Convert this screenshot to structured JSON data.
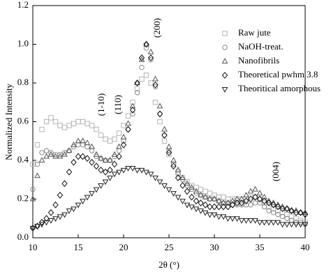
{
  "chart_data": {
    "type": "scatter",
    "xlabel": "2θ (°)",
    "ylabel": "Normalized Intensity",
    "annotations": [
      "(1-10)",
      "(110)",
      "(200)",
      "(004)"
    ],
    "legend": "upper right",
    "xlim": [
      10,
      40
    ],
    "ylim": [
      0,
      1.2
    ],
    "xticks": [
      10,
      15,
      20,
      25,
      30,
      35,
      40
    ],
    "yticks": [
      {
        "value": 0,
        "label": "0.0"
      },
      0.2,
      0.4,
      0.6,
      0.8,
      {
        "value": 1,
        "label": "1.0"
      },
      1.2
    ],
    "x": [
      10,
      10.5,
      11,
      11.5,
      12,
      12.5,
      13,
      13.5,
      14,
      14.5,
      15,
      15.5,
      16,
      16.5,
      17,
      17.5,
      18,
      18.5,
      19,
      19.5,
      20,
      20.5,
      21,
      21.5,
      22,
      22.5,
      23,
      23.5,
      24,
      24.5,
      25,
      25.5,
      26,
      26.5,
      27,
      27.5,
      28,
      28.5,
      29,
      29.5,
      30,
      30.5,
      31,
      31.5,
      32,
      32.5,
      33,
      33.5,
      34,
      34.5,
      35,
      35.5,
      36,
      36.5,
      37,
      37.5,
      38,
      38.5,
      39,
      39.5,
      40
    ],
    "series": [
      {
        "name": "Raw jute",
        "color": "#b3b3b3",
        "marker": "square",
        "values": [
          0.38,
          0.48,
          0.56,
          0.6,
          0.62,
          0.6,
          0.58,
          0.57,
          0.58,
          0.59,
          0.6,
          0.6,
          0.59,
          0.58,
          0.56,
          0.53,
          0.51,
          0.5,
          0.51,
          0.54,
          0.58,
          0.63,
          0.7,
          0.77,
          0.82,
          0.84,
          0.8,
          0.7,
          0.6,
          0.5,
          0.43,
          0.38,
          0.34,
          0.31,
          0.29,
          0.27,
          0.26,
          0.25,
          0.24,
          0.23,
          0.22,
          0.21,
          0.21,
          0.2,
          0.2,
          0.2,
          0.2,
          0.2,
          0.21,
          0.21,
          0.2,
          0.18,
          0.16,
          0.15,
          0.14,
          0.13,
          0.12,
          0.11,
          0.1,
          0.09,
          0.08
        ]
      },
      {
        "name": "NaOH-treat.",
        "color": "#8a8a8a",
        "marker": "circle",
        "values": [
          0.25,
          0.38,
          0.44,
          0.45,
          0.44,
          0.43,
          0.43,
          0.44,
          0.45,
          0.47,
          0.48,
          0.48,
          0.47,
          0.45,
          0.42,
          0.41,
          0.4,
          0.4,
          0.42,
          0.45,
          0.5,
          0.56,
          0.64,
          0.75,
          0.88,
          0.98,
          0.92,
          0.78,
          0.64,
          0.53,
          0.45,
          0.38,
          0.33,
          0.3,
          0.27,
          0.25,
          0.23,
          0.22,
          0.21,
          0.2,
          0.2,
          0.19,
          0.18,
          0.18,
          0.17,
          0.17,
          0.17,
          0.17,
          0.17,
          0.18,
          0.18,
          0.16,
          0.14,
          0.13,
          0.12,
          0.11,
          0.1,
          0.09,
          0.08,
          0.08,
          0.07
        ]
      },
      {
        "name": "Nanofibrils",
        "color": "#555555",
        "marker": "triangle",
        "values": [
          0.2,
          0.32,
          0.4,
          0.42,
          0.43,
          0.42,
          0.42,
          0.43,
          0.45,
          0.48,
          0.5,
          0.5,
          0.49,
          0.47,
          0.43,
          0.41,
          0.4,
          0.4,
          0.43,
          0.47,
          0.52,
          0.59,
          0.68,
          0.8,
          0.92,
          1.0,
          0.96,
          0.82,
          0.68,
          0.56,
          0.47,
          0.4,
          0.35,
          0.31,
          0.28,
          0.26,
          0.24,
          0.22,
          0.21,
          0.2,
          0.2,
          0.19,
          0.18,
          0.18,
          0.19,
          0.2,
          0.2,
          0.22,
          0.24,
          0.25,
          0.23,
          0.21,
          0.19,
          0.18,
          0.17,
          0.16,
          0.15,
          0.14,
          0.14,
          0.13,
          0.13
        ]
      },
      {
        "name": "Theoretical pwhm 3.8",
        "color": "#111111",
        "marker": "diamond",
        "values": [
          0.05,
          0.06,
          0.08,
          0.1,
          0.13,
          0.17,
          0.22,
          0.28,
          0.34,
          0.39,
          0.42,
          0.42,
          0.41,
          0.39,
          0.37,
          0.35,
          0.34,
          0.35,
          0.38,
          0.42,
          0.48,
          0.56,
          0.66,
          0.8,
          0.93,
          1.0,
          0.93,
          0.79,
          0.64,
          0.53,
          0.44,
          0.37,
          0.31,
          0.27,
          0.24,
          0.21,
          0.19,
          0.18,
          0.17,
          0.16,
          0.16,
          0.16,
          0.16,
          0.16,
          0.17,
          0.18,
          0.18,
          0.19,
          0.2,
          0.21,
          0.2,
          0.19,
          0.18,
          0.17,
          0.16,
          0.15,
          0.15,
          0.14,
          0.13,
          0.13,
          0.12
        ]
      },
      {
        "name": "Theoritical amorphous",
        "color": "#222222",
        "marker": "triangle-down",
        "values": [
          0.05,
          0.06,
          0.07,
          0.08,
          0.09,
          0.1,
          0.11,
          0.12,
          0.14,
          0.15,
          0.17,
          0.19,
          0.21,
          0.23,
          0.25,
          0.27,
          0.29,
          0.31,
          0.33,
          0.34,
          0.35,
          0.36,
          0.36,
          0.35,
          0.35,
          0.34,
          0.33,
          0.31,
          0.29,
          0.27,
          0.25,
          0.23,
          0.21,
          0.19,
          0.17,
          0.16,
          0.15,
          0.14,
          0.13,
          0.12,
          0.12,
          0.11,
          0.11,
          0.1,
          0.1,
          0.1,
          0.09,
          0.09,
          0.09,
          0.09,
          0.08,
          0.08,
          0.08,
          0.08,
          0.08,
          0.07,
          0.07,
          0.07,
          0.07,
          0.07,
          0.07
        ]
      }
    ]
  }
}
